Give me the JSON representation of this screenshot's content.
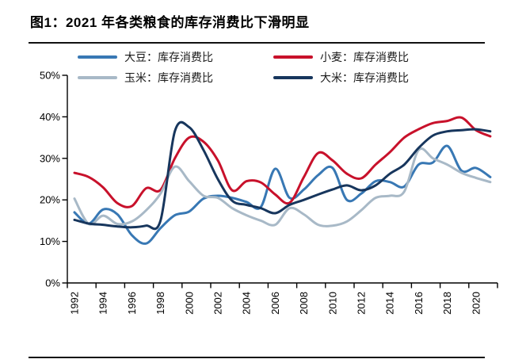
{
  "title": "图1：2021 年各类粮食的库存消费比下滑明显",
  "colors": {
    "soybean": "#3878B4",
    "wheat": "#C8112B",
    "corn": "#A8B9C7",
    "rice": "#17365D",
    "axis": "#000000",
    "rule": "#111111"
  },
  "chart_data": {
    "type": "line",
    "title": "",
    "xlabel": "",
    "ylabel": "",
    "ylim": [
      0,
      50
    ],
    "grid": false,
    "legend_position": "top",
    "y_ticks": [
      "0%",
      "10%",
      "20%",
      "30%",
      "40%",
      "50%"
    ],
    "x_tick_labels": [
      "1992",
      "1994",
      "1996",
      "1998",
      "2000",
      "2002",
      "2004",
      "2006",
      "2008",
      "2010",
      "2012",
      "2014",
      "2016",
      "2018",
      "2020"
    ],
    "x": [
      1992,
      1993,
      1994,
      1995,
      1996,
      1997,
      1998,
      1999,
      2000,
      2001,
      2002,
      2003,
      2004,
      2005,
      2006,
      2007,
      2008,
      2009,
      2010,
      2011,
      2012,
      2013,
      2014,
      2015,
      2016,
      2017,
      2018,
      2019,
      2020,
      2021
    ],
    "series": [
      {
        "key": "soybean",
        "name": "大豆：库存消费比",
        "color": "#3878B4",
        "values": [
          17.0,
          14.3,
          17.7,
          16.5,
          11.5,
          9.5,
          13.2,
          16.3,
          17.2,
          20.3,
          21.0,
          20.5,
          19.5,
          18.3,
          27.5,
          20.5,
          22.5,
          26.0,
          27.7,
          20.0,
          21.5,
          24.5,
          24.3,
          23.2,
          28.5,
          29.0,
          33.0,
          27.0,
          27.7,
          25.5
        ]
      },
      {
        "key": "wheat",
        "name": "小麦：库存消费比",
        "color": "#C8112B",
        "values": [
          26.5,
          25.5,
          23.0,
          19.2,
          18.5,
          22.8,
          22.4,
          30.0,
          35.0,
          34.0,
          29.5,
          22.3,
          24.5,
          24.2,
          21.3,
          19.3,
          25.5,
          31.3,
          29.5,
          26.3,
          25.2,
          28.5,
          31.5,
          35.0,
          37.0,
          38.5,
          39.0,
          39.8,
          36.8,
          35.3
        ]
      },
      {
        "key": "corn",
        "name": "玉米：库存消费比",
        "color": "#A8B9C7",
        "values": [
          20.3,
          14.2,
          16.2,
          14.2,
          14.8,
          17.5,
          21.5,
          28.0,
          24.5,
          21.0,
          20.5,
          18.0,
          16.3,
          15.0,
          14.0,
          18.0,
          16.5,
          14.0,
          13.8,
          14.8,
          17.5,
          20.5,
          21.0,
          22.0,
          32.0,
          30.0,
          28.5,
          26.5,
          25.3,
          24.3
        ]
      },
      {
        "key": "rice",
        "name": "大米：库存消费比",
        "color": "#17365D",
        "values": [
          15.2,
          14.3,
          14.0,
          13.6,
          13.4,
          13.8,
          15.0,
          36.5,
          37.5,
          32.0,
          25.0,
          19.8,
          18.8,
          18.0,
          16.8,
          18.8,
          20.0,
          21.3,
          22.5,
          23.5,
          22.3,
          23.5,
          26.3,
          28.5,
          32.5,
          35.5,
          36.5,
          36.8,
          37.0,
          36.5
        ]
      }
    ]
  }
}
